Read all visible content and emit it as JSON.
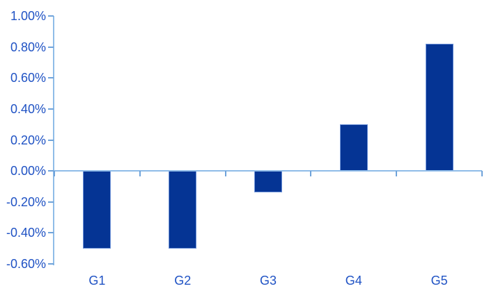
{
  "chart_data": {
    "type": "bar",
    "title": "",
    "xlabel": "",
    "ylabel": "",
    "categories": [
      "G1",
      "G2",
      "G3",
      "G4",
      "G5"
    ],
    "values": [
      -0.5,
      -0.5,
      -0.14,
      0.3,
      0.82
    ],
    "unit": "%",
    "ylim": [
      -0.6,
      1.0
    ],
    "ytick_step": 0.2,
    "ytick_labels": [
      "1.00%",
      "0.80%",
      "0.60%",
      "0.40%",
      "0.20%",
      "0.00%",
      "-0.20%",
      "-0.40%",
      "-0.60%"
    ],
    "grid": false,
    "legend": null,
    "series_count": 1
  },
  "colors": {
    "background": "#FFFFFF",
    "bar_fill": "#053494",
    "bar_border": "#6E93D8",
    "axis_line": "#8FBCE8",
    "tick_mark": "#6FA3DA",
    "label_text": "#1F52C4"
  }
}
